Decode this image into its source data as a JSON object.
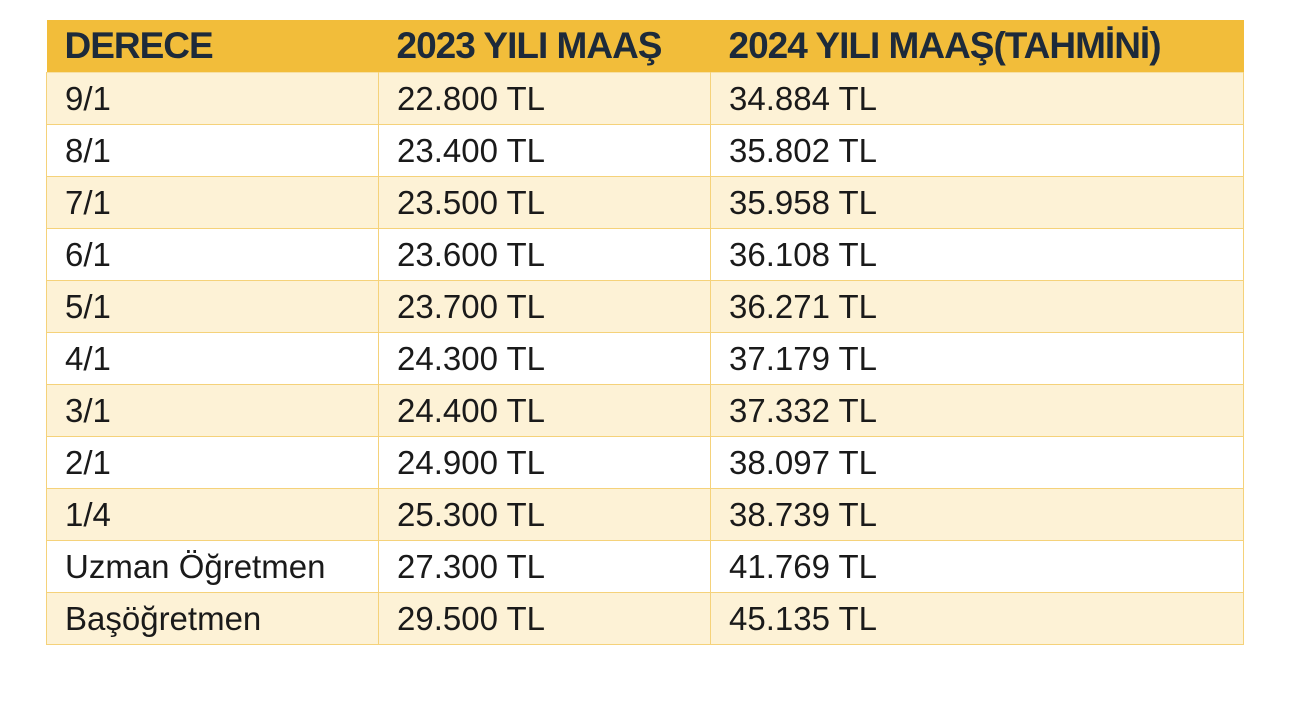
{
  "header": {
    "col1": "DERECE",
    "col2": "2023 YILI MAAŞ",
    "col3": "2024 YILI MAAŞ(TAHMİNİ)"
  },
  "colors": {
    "header_bg": "#f2bd3a",
    "row_alt_bg": "#fdf2d6",
    "border": "#f5d27a"
  },
  "rows": [
    {
      "derece": "9/1",
      "maas_2023": "22.800 TL",
      "maas_2024": "34.884 TL"
    },
    {
      "derece": "8/1",
      "maas_2023": "23.400 TL",
      "maas_2024": "35.802 TL"
    },
    {
      "derece": "7/1",
      "maas_2023": "23.500 TL",
      "maas_2024": "35.958 TL"
    },
    {
      "derece": "6/1",
      "maas_2023": "23.600 TL",
      "maas_2024": "36.108 TL"
    },
    {
      "derece": "5/1",
      "maas_2023": "23.700 TL",
      "maas_2024": "36.271 TL"
    },
    {
      "derece": "4/1",
      "maas_2023": "24.300 TL",
      "maas_2024": "37.179 TL"
    },
    {
      "derece": "3/1",
      "maas_2023": "24.400 TL",
      "maas_2024": "37.332 TL"
    },
    {
      "derece": "2/1",
      "maas_2023": "24.900 TL",
      "maas_2024": "38.097 TL"
    },
    {
      "derece": "1/4",
      "maas_2023": "25.300 TL",
      "maas_2024": "38.739 TL"
    },
    {
      "derece": "Uzman Öğretmen",
      "maas_2023": "27.300 TL",
      "maas_2024": "41.769 TL"
    },
    {
      "derece": "Başöğretmen",
      "maas_2023": "29.500 TL",
      "maas_2024": "45.135 TL"
    }
  ]
}
